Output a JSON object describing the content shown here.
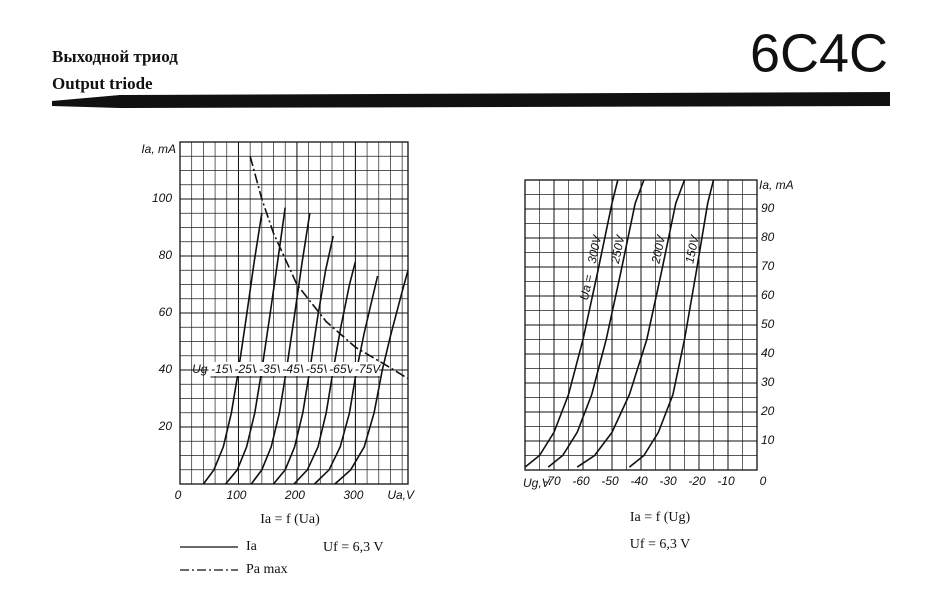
{
  "header": {
    "title_ru": "Выходной триод",
    "title_en": "Output triode",
    "part_number": "6C4C"
  },
  "chart_data": [
    {
      "type": "line",
      "ylabel": "Ia, mA",
      "xlabel": "Ua,V",
      "caption": "Ia = f (Ua)",
      "condition": "Uf = 6,3 V",
      "curve_parameter": "Ug",
      "xlim": [
        0,
        390
      ],
      "ylim": [
        0,
        120
      ],
      "xticks": [
        0,
        100,
        200,
        300
      ],
      "yticks": [
        20,
        40,
        60,
        80,
        100
      ],
      "grid": true,
      "yaxis_side": "left",
      "legend": [
        {
          "label": "Ia",
          "style": "solid"
        },
        {
          "label": "Pa max",
          "style": "dash-dot"
        }
      ],
      "series": [
        {
          "name": "-15V",
          "color": "#111111",
          "x": [
            40,
            58,
            74,
            88,
            100,
            113,
            127,
            140
          ],
          "values": [
            0,
            5,
            13,
            25,
            40,
            58,
            78,
            95
          ]
        },
        {
          "name": "-25V",
          "color": "#111111",
          "x": [
            78,
            98,
            114,
            128,
            140,
            153,
            167,
            180
          ],
          "values": [
            0,
            5,
            13,
            25,
            40,
            58,
            78,
            97
          ]
        },
        {
          "name": "-35V",
          "color": "#111111",
          "x": [
            122,
            140,
            156,
            170,
            182,
            195,
            209,
            222
          ],
          "values": [
            0,
            5,
            13,
            25,
            40,
            58,
            78,
            95
          ]
        },
        {
          "name": "-45V",
          "color": "#111111",
          "x": [
            160,
            180,
            196,
            210,
            222,
            235,
            249,
            262
          ],
          "values": [
            0,
            5,
            13,
            25,
            40,
            58,
            75,
            87
          ]
        },
        {
          "name": "-55V",
          "color": "#111111",
          "x": [
            195,
            218,
            236,
            250,
            262,
            275,
            290,
            300
          ],
          "values": [
            0,
            5,
            13,
            25,
            40,
            55,
            70,
            78
          ]
        },
        {
          "name": "-65V",
          "color": "#111111",
          "x": [
            230,
            255,
            274,
            290,
            302,
            315,
            330,
            338
          ],
          "values": [
            0,
            5,
            13,
            25,
            40,
            53,
            66,
            73
          ]
        },
        {
          "name": "-75V",
          "color": "#111111",
          "x": [
            265,
            292,
            315,
            332,
            346,
            360,
            378,
            390
          ],
          "values": [
            0,
            5,
            13,
            25,
            40,
            52,
            66,
            75
          ]
        }
      ],
      "limit_curve": {
        "name": "Pa max",
        "color": "#111111",
        "style": "dash-dot",
        "x": [
          120,
          140,
          160,
          200,
          250,
          300,
          350,
          390
        ],
        "values": [
          115,
          100,
          88,
          70,
          57,
          48,
          42,
          37
        ]
      }
    },
    {
      "type": "line",
      "ylabel": "Ia, mA",
      "xlabel": "Ug,V",
      "caption": "Ia = f (Ug)",
      "condition": "Uf = 6,3 V",
      "curve_parameter": "Ua =",
      "xlim": [
        -80,
        0
      ],
      "ylim": [
        0,
        100
      ],
      "xticks": [
        -70,
        -60,
        -50,
        -40,
        -30,
        -20,
        -10,
        0
      ],
      "yticks": [
        10,
        20,
        30,
        40,
        50,
        60,
        70,
        80,
        90
      ],
      "grid": true,
      "yaxis_side": "right",
      "series": [
        {
          "name": "300V",
          "color": "#111111",
          "x": [
            -80,
            -75,
            -70,
            -65,
            -60,
            -55,
            -50,
            -48
          ],
          "values": [
            1,
            5,
            13,
            26,
            45,
            68,
            92,
            100
          ]
        },
        {
          "name": "250V",
          "color": "#111111",
          "x": [
            -72,
            -67,
            -62,
            -57,
            -52,
            -47,
            -42,
            -39
          ],
          "values": [
            1,
            5,
            13,
            26,
            45,
            68,
            92,
            100
          ]
        },
        {
          "name": "200V",
          "color": "#111111",
          "x": [
            -62,
            -56,
            -50,
            -44,
            -38,
            -33,
            -28,
            -25
          ],
          "values": [
            1,
            5,
            13,
            26,
            45,
            68,
            92,
            100
          ]
        },
        {
          "name": "150V",
          "color": "#111111",
          "x": [
            -44,
            -39,
            -34,
            -29,
            -25,
            -21,
            -17,
            -15
          ],
          "values": [
            1,
            5,
            13,
            26,
            45,
            68,
            92,
            100
          ]
        }
      ]
    }
  ]
}
